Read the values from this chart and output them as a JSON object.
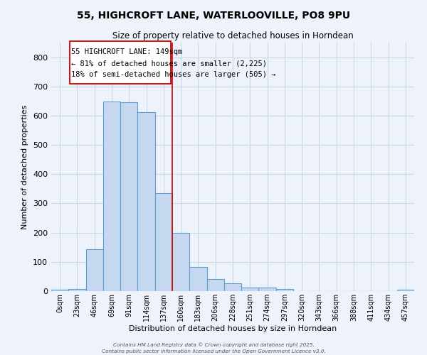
{
  "title_line1": "55, HIGHCROFT LANE, WATERLOOVILLE, PO8 9PU",
  "title_line2": "Size of property relative to detached houses in Horndean",
  "xlabel": "Distribution of detached houses by size in Horndean",
  "ylabel": "Number of detached properties",
  "bin_labels": [
    "0sqm",
    "23sqm",
    "46sqm",
    "69sqm",
    "91sqm",
    "114sqm",
    "137sqm",
    "160sqm",
    "183sqm",
    "206sqm",
    "228sqm",
    "251sqm",
    "274sqm",
    "297sqm",
    "320sqm",
    "343sqm",
    "366sqm",
    "388sqm",
    "411sqm",
    "434sqm",
    "457sqm"
  ],
  "bar_heights": [
    5,
    8,
    143,
    648,
    645,
    613,
    335,
    200,
    82,
    42,
    27,
    11,
    13,
    8,
    0,
    0,
    0,
    0,
    0,
    0,
    5
  ],
  "bar_color": "#c5d8ef",
  "bar_edge_color": "#5a9fd4",
  "grid_color": "#c8d8e8",
  "background_color": "#eef2fb",
  "vline_x": 6.5,
  "vline_color": "#cc0000",
  "annotation_line1": "55 HIGHCROFT LANE: 149sqm",
  "annotation_line2": "← 81% of detached houses are smaller (2,225)",
  "annotation_line3": "18% of semi-detached houses are larger (505) →",
  "box_edge_color": "#cc0000",
  "footnote_line1": "Contains HM Land Registry data © Crown copyright and database right 2025.",
  "footnote_line2": "Contains public sector information licensed under the Open Government Licence v3.0.",
  "ylim": [
    0,
    850
  ],
  "xlim": [
    -0.5,
    20.5
  ],
  "figsize": [
    6.0,
    5.0
  ],
  "dpi": 100
}
